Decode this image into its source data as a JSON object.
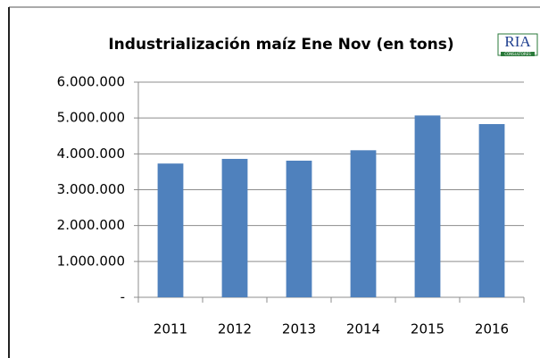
{
  "chart_data": {
    "type": "bar",
    "title": "Industrialización maíz Ene Nov (en tons)",
    "logo": {
      "name": "RIA",
      "subtitle": "CONSULTORES"
    },
    "categories": [
      "2011",
      "2012",
      "2013",
      "2014",
      "2015",
      "2016"
    ],
    "values": [
      3730000,
      3860000,
      3810000,
      4100000,
      5070000,
      4830000
    ],
    "color": "#4f81bd",
    "ylim": [
      0,
      6000000
    ],
    "yticks": [
      {
        "value": 0,
        "label": "-"
      },
      {
        "value": 1000000,
        "label": "1.000.000"
      },
      {
        "value": 2000000,
        "label": "2.000.000"
      },
      {
        "value": 3000000,
        "label": "3.000.000"
      },
      {
        "value": 4000000,
        "label": "4.000.000"
      },
      {
        "value": 5000000,
        "label": "5.000.000"
      },
      {
        "value": 6000000,
        "label": "6.000.000"
      }
    ],
    "grid": true
  }
}
